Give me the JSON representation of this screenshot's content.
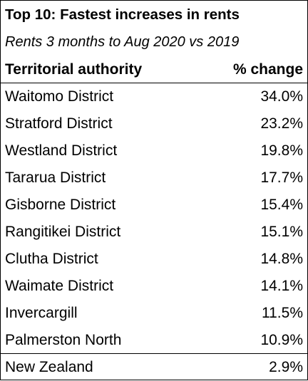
{
  "header": {
    "title": "Top 10: Fastest increases in rents",
    "subtitle": "Rents 3 months to Aug 2020 vs 2019"
  },
  "table": {
    "columns": [
      "Territorial authority",
      "% change"
    ],
    "rows": [
      [
        "Waitomo District",
        "34.0%"
      ],
      [
        "Stratford District",
        "23.2%"
      ],
      [
        "Westland District",
        "19.8%"
      ],
      [
        "Tararua District",
        "17.7%"
      ],
      [
        "Gisborne District",
        "15.4%"
      ],
      [
        "Rangitikei District",
        "15.1%"
      ],
      [
        "Clutha District",
        "14.8%"
      ],
      [
        "Waimate District",
        "14.1%"
      ],
      [
        "Invercargill",
        "11.5%"
      ],
      [
        "Palmerston North",
        "10.9%"
      ]
    ],
    "total": [
      "New Zealand",
      "2.9%"
    ]
  }
}
